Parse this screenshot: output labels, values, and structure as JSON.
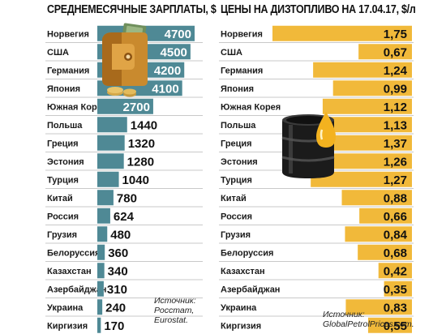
{
  "panels": {
    "salary_title": "СРЕДНЕМЕСЯЧНЫЕ ЗАРПЛАТЫ, $",
    "diesel_title": "ЦЕНЫ НА ДИЗТОПЛИВО НА 17.04.17, $/л"
  },
  "sources": {
    "salary_label": "Источник:",
    "salary_names": [
      "Росстат,",
      "Eurostat."
    ],
    "diesel_label": "Источник:",
    "diesel_names": [
      "GlobalPetrolPrices.com."
    ]
  },
  "colors": {
    "salary_bar": "#4f8995",
    "diesel_bar": "#f1b93a",
    "separator": "#c9c9c9"
  },
  "icons": [
    "wallet-with-money-icon",
    "oil-barrel-with-drop-icon"
  ],
  "chart_data": [
    {
      "type": "bar",
      "orientation": "horizontal",
      "title": "СРЕДНЕМЕСЯЧНЫЕ ЗАРПЛАТЫ, $",
      "categories": [
        "Норвегия",
        "США",
        "Германия",
        "Япония",
        "Южная Корея",
        "Польша",
        "Греция",
        "Эстония",
        "Турция",
        "Китай",
        "Россия",
        "Грузия",
        "Белоруссия",
        "Казахстан",
        "Азербайджан",
        "Украина",
        "Киргизия"
      ],
      "values": [
        4700,
        4500,
        4200,
        4100,
        2700,
        1440,
        1320,
        1280,
        1040,
        780,
        624,
        480,
        360,
        340,
        310,
        240,
        170
      ],
      "labels": [
        "4700",
        "4500",
        "4200",
        "4100",
        "2700",
        "1440",
        "1320",
        "1280",
        "1040",
        "780",
        "624",
        "480",
        "360",
        "340",
        "310",
        "240",
        "170"
      ],
      "xlim": [
        0,
        4700
      ]
    },
    {
      "type": "bar",
      "orientation": "horizontal",
      "title": "ЦЕНЫ НА ДИЗТОПЛИВО НА 17.04.17, $/л",
      "categories": [
        "Норвегия",
        "США",
        "Германия",
        "Япония",
        "Южная Корея",
        "Польша",
        "Греция",
        "Эстония",
        "Турция",
        "Китай",
        "Россия",
        "Грузия",
        "Белоруссия",
        "Казахстан",
        "Азербайджан",
        "Украина",
        "Киргизия"
      ],
      "values": [
        1.75,
        0.67,
        1.24,
        0.99,
        1.12,
        1.13,
        1.37,
        1.26,
        1.27,
        0.88,
        0.66,
        0.84,
        0.68,
        0.42,
        0.35,
        0.83,
        0.55
      ],
      "labels": [
        "1,75",
        "0,67",
        "1,24",
        "0,99",
        "1,12",
        "1,13",
        "1,37",
        "1,26",
        "1,27",
        "0,88",
        "0,66",
        "0,84",
        "0,68",
        "0,42",
        "0,35",
        "0,83",
        "0,55"
      ],
      "xlim": [
        0,
        1.75
      ]
    }
  ]
}
